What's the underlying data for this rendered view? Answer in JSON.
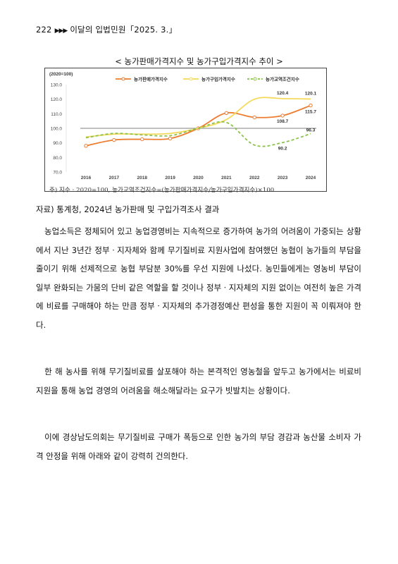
{
  "header": {
    "page_number": "222",
    "arrows": "▶▶▶",
    "title": "이달의 입법민원「2025. 3.」"
  },
  "figure": {
    "title": "< 농가판매가격지수 및 농가구입가격지수 추이 >",
    "note": "주) 지수 : 2020=100, 농가교역조건지수=(농가판매가격지수/농가구입가격지수)×100",
    "source": "자료) 통계청, 2024년 농가판매 및 구입가격조사 결과"
  },
  "chart_data": {
    "type": "line",
    "unit_label": "(2020=100)",
    "x": [
      "2016",
      "2017",
      "2018",
      "2019",
      "2020",
      "2021",
      "2022",
      "2023",
      "2024"
    ],
    "ylim": [
      70,
      130
    ],
    "yticks": [
      "70.0",
      "80.0",
      "90.0",
      "100.0",
      "110.0",
      "120.0",
      "130.0"
    ],
    "reference_line": 100,
    "legend_position": "top",
    "series": [
      {
        "name": "농가판매가격지수",
        "color": "#ed7d31",
        "style": "solid",
        "values": [
          88.0,
          92.0,
          92.5,
          93.0,
          100.0,
          110.5,
          107.5,
          108.7,
          115.7
        ]
      },
      {
        "name": "농가구입가격지수",
        "color": "#f5d95a",
        "style": "solid",
        "values": [
          94.0,
          96.0,
          96.0,
          96.5,
          100.0,
          106.0,
          120.0,
          120.4,
          120.1
        ]
      },
      {
        "name": "농가교역조건지수",
        "color": "#8bc34a",
        "style": "dashed",
        "values": [
          93.5,
          96.5,
          95.5,
          95.0,
          100.0,
          104.0,
          88.5,
          90.2,
          96.3
        ]
      }
    ],
    "data_labels": [
      {
        "text": "120.4",
        "x": "2023",
        "y": 120.4
      },
      {
        "text": "120.1",
        "x": "2024",
        "y": 120.1
      },
      {
        "text": "108.7",
        "x": "2023",
        "y": 108.7
      },
      {
        "text": "115.7",
        "x": "2024",
        "y": 115.7
      },
      {
        "text": "90.2",
        "x": "2023",
        "y": 90.2
      },
      {
        "text": "96.3",
        "x": "2024",
        "y": 96.3
      }
    ]
  },
  "paragraphs": [
    "농업소득은 정체되어 있고 농업경영비는 지속적으로 증가하여 농가의 어려움이 가중되는 상황에서 지난 3년간 정부ㆍ지자체와 함께 무기질비료 지원사업에 참여했던 농협이 농가들의 부담을 줄이기 위해 선제적으로 농협 부담분 30%를 우선 지원에 나섰다. 농민들에게는 영농비 부담이 일부 완화되는 가뭄의 단비 같은 역할을 할 것이나 정부ㆍ지자체의 지원 없이는 여전히 높은 가격에 비료를 구매해야 하는 만큼 정부ㆍ지자체의 추가경정예산 편성을 통한 지원이 꼭 이뤄져야 한다.",
    "한 해 농사를 위해 무기질비료를 살포해야 하는 본격적인 영농철을 앞두고 농가에서는 비료비 지원을 통해 농업 경영의 어려움을 해소해달라는 요구가 빗발치는 상황이다.",
    "이에 경상남도의회는 무기질비료 구매가 폭등으로 인한 농가의 부담 경감과 농산물 소비자 가격 안정을 위해 아래와 같이 강력히 건의한다."
  ]
}
